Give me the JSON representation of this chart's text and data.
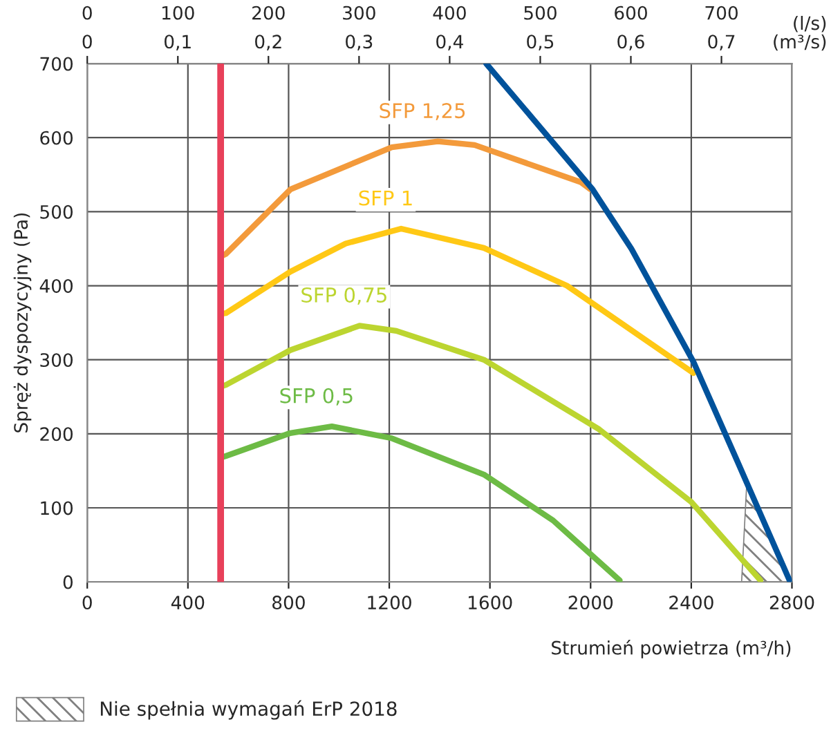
{
  "chart_data": {
    "type": "line",
    "xlabel": "Strumień powietrza (m³/h)",
    "ylabel": "Spręż dyspozycyjny (Pa)",
    "x2label": "(l/s)",
    "annotations": [
      "0",
      "0,1",
      "0,2",
      "0,3",
      "0,4",
      "0,5",
      "0,6",
      "0,7",
      "(m³/s)"
    ],
    "xlim": [
      0,
      2800
    ],
    "xticks": [
      0,
      400,
      800,
      1200,
      1600,
      2000,
      2400,
      2800
    ],
    "ylim": [
      0,
      700
    ],
    "yticks": [
      0,
      100,
      200,
      300,
      400,
      500,
      600,
      700
    ],
    "x2lim": [
      0,
      777.8
    ],
    "x2ticks": [
      0,
      100,
      200,
      300,
      400,
      500,
      600,
      700
    ],
    "grid": true,
    "legend": "bottom left",
    "ref_lines": [
      {
        "axis": "x",
        "value": 530,
        "color": "#e8405a"
      }
    ],
    "series": [
      {
        "name": "SFP 1,25",
        "color": "#f39a3b",
        "x": [
          533,
          551,
          807,
          1210,
          1393,
          1539,
          1960,
          2000
        ],
        "values": [
          440,
          443,
          530,
          587,
          595,
          590,
          540,
          530
        ]
      },
      {
        "name": "SFP 1",
        "color": "#ffc815",
        "x": [
          533,
          551,
          807,
          1027,
          1247,
          1576,
          1906,
          2409
        ],
        "values": [
          362,
          363,
          419,
          457,
          477,
          451,
          400,
          282
        ]
      },
      {
        "name": "SFP 0,75",
        "color": "#bcd530",
        "x": [
          533,
          551,
          807,
          1082,
          1228,
          1576,
          2034,
          2400,
          2675
        ],
        "values": [
          264,
          266,
          313,
          346,
          339,
          300,
          206,
          108,
          2
        ]
      },
      {
        "name": "SFP 0,5",
        "color": "#6dbb45",
        "x": [
          533,
          551,
          807,
          972,
          1210,
          1576,
          1851,
          2116
        ],
        "values": [
          168,
          170,
          201,
          210,
          194,
          145,
          83,
          2
        ]
      },
      {
        "color": "#00529b",
        "x": [
          1585,
          2006,
          2162,
          2409,
          2583,
          2793
        ],
        "values": [
          700,
          531,
          450,
          297,
          163,
          0
        ]
      },
      {
        "type": "area",
        "name": "Nie spełnia wymagań ErP 2018",
        "color": "#808080",
        "x": [
          2600,
          2620,
          2700,
          2800
        ],
        "values": [
          0,
          130,
          72,
          0
        ]
      }
    ]
  }
}
